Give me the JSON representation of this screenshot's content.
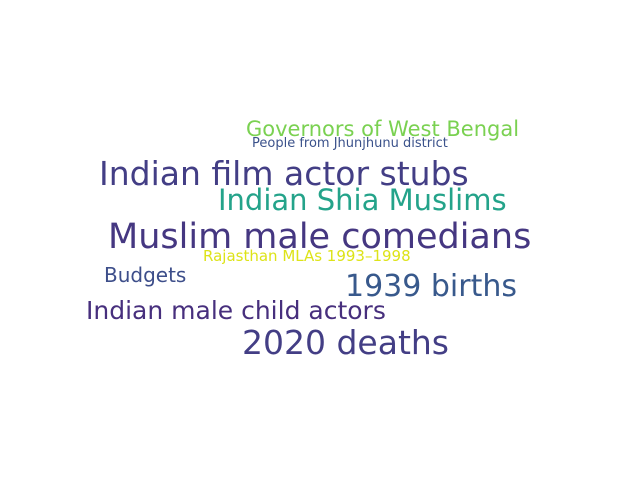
{
  "word_cloud": {
    "background": "#ffffff",
    "words": [
      {
        "id": "governors",
        "text": "Governors of West Bengal",
        "color": "#7ad151"
      },
      {
        "id": "jhunjhunu",
        "text": "People from Jhunjhunu district",
        "color": "#3b528b"
      },
      {
        "id": "filmstubs",
        "text": "Indian film actor stubs",
        "color": "#433e85"
      },
      {
        "id": "shia",
        "text": "Indian Shia Muslims",
        "color": "#24a38a"
      },
      {
        "id": "comedians",
        "text": "Muslim male comedians",
        "color": "#453781"
      },
      {
        "id": "rajasthan",
        "text": "Rajasthan MLAs 1993–1998",
        "color": "#dde318"
      },
      {
        "id": "budgets",
        "text": "Budgets",
        "color": "#3d4e8a"
      },
      {
        "id": "births",
        "text": "1939 births",
        "color": "#38598c"
      },
      {
        "id": "childactors",
        "text": "Indian male child actors",
        "color": "#472f7d"
      },
      {
        "id": "deaths",
        "text": "2020 deaths",
        "color": "#433e85"
      }
    ]
  }
}
